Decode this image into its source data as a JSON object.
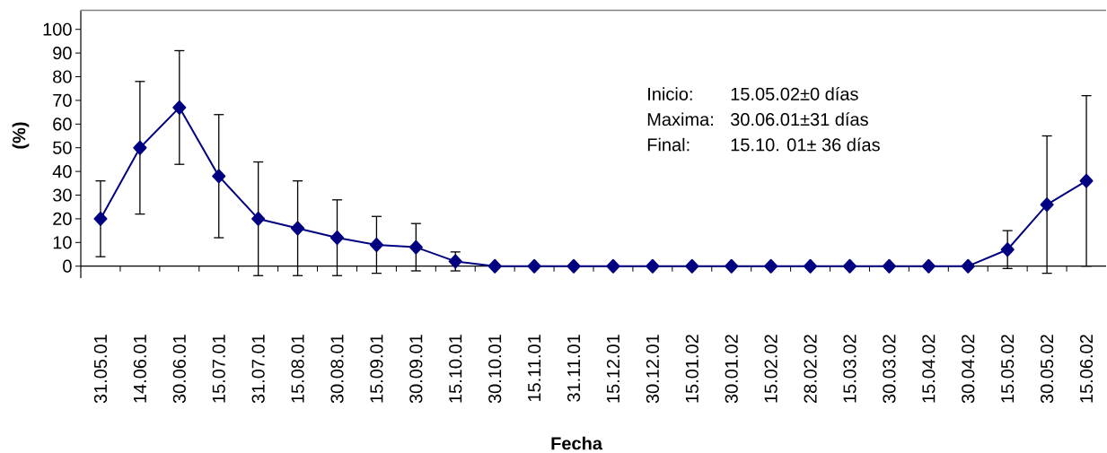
{
  "chart_data": {
    "type": "line",
    "xlabel": "Fecha",
    "ylabel": "(%)",
    "categories": [
      "31.05.01",
      "14.06.01",
      "30.06.01",
      "15.07.01",
      "31.07.01",
      "15.08.01",
      "30.08.01",
      "15.09.01",
      "30.09.01",
      "15.10.01",
      "30.10.01",
      "15.11.01",
      "31.11.01",
      "15.12.01",
      "30.12.01",
      "15.01.02",
      "30.01.02",
      "15.02.02",
      "28.02.02",
      "15.03.02",
      "30.03.02",
      "15.04.02",
      "30.04.02",
      "15.05.02",
      "30.05.02",
      "15.06.02"
    ],
    "values": [
      20,
      50,
      67,
      38,
      20,
      16,
      12,
      9,
      8,
      2,
      0,
      0,
      0,
      0,
      0,
      0,
      0,
      0,
      0,
      0,
      0,
      0,
      0,
      7,
      26,
      36
    ],
    "errors": [
      16,
      28,
      24,
      26,
      24,
      20,
      16,
      12,
      10,
      4,
      null,
      null,
      null,
      null,
      null,
      null,
      null,
      null,
      null,
      null,
      null,
      null,
      null,
      8,
      29,
      36
    ],
    "color": "#000080",
    "marker": "diamond",
    "ylim": [
      -5,
      108
    ],
    "yticks": [
      0,
      10,
      20,
      30,
      40,
      50,
      60,
      70,
      80,
      90,
      100
    ],
    "annotations": [
      "Inicio:",
      "15.05.02±0 días",
      "Maxima:",
      "30.06.01±31 días",
      "Final:",
      "15.10. 01± 36 días"
    ]
  }
}
